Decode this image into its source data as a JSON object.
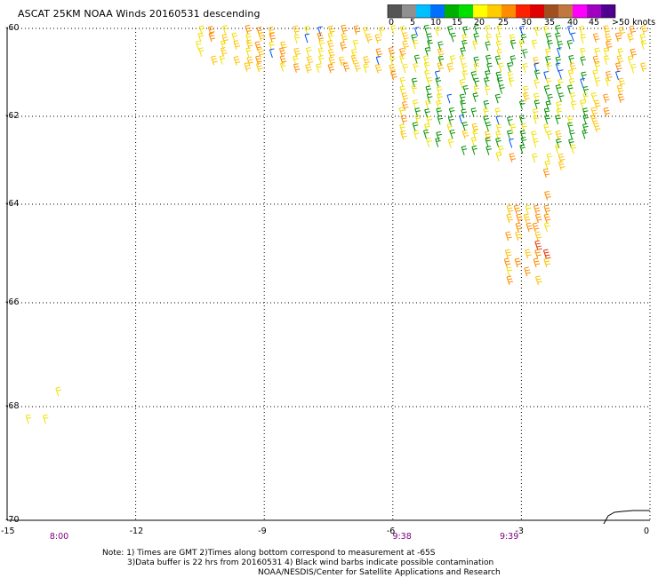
{
  "title": "ASCAT 25KM NOAA Winds 20160531 descending",
  "legend": {
    "ticks": [
      "0",
      "5",
      "10",
      "15",
      "20",
      "25",
      "30",
      "35",
      "40",
      "45",
      ">50 knots"
    ],
    "colors": [
      "#555555",
      "#909090",
      "#00bfff",
      "#0070ff",
      "#00b000",
      "#00e000",
      "#ffff00",
      "#ffcc00",
      "#ff8c00",
      "#ff2000",
      "#e00000",
      "#a05020",
      "#c07840",
      "#ff00ff",
      "#a000c0",
      "#500090"
    ]
  },
  "chart_data": {
    "type": "scatter",
    "title": "ASCAT 25KM NOAA Winds 20160531 descending",
    "xlabel": "",
    "ylabel": "",
    "x_ticks": [
      "-15",
      "-12",
      "-9",
      "-6",
      "-3",
      "0"
    ],
    "y_ticks": [
      "-60",
      "-62",
      "-64",
      "-66",
      "-68",
      "-70"
    ],
    "xlim": [
      -15,
      0
    ],
    "ylim": [
      -70,
      -60
    ],
    "grid": true,
    "time_labels": [
      {
        "x": -13.8,
        "text": "8:00"
      },
      {
        "x": -5.8,
        "text": "9:38"
      },
      {
        "x": -3.3,
        "text": "9:39"
      }
    ],
    "isolated_barbs": [
      {
        "lon": -13.8,
        "lat": -67.8,
        "knots": 20
      },
      {
        "lon": -14.5,
        "lat": -68.3,
        "knots": 20
      },
      {
        "lon": -14.1,
        "lat": -68.3,
        "knots": 20
      }
    ]
  },
  "notes": {
    "line1": "Note: 1) Times are GMT 2)Times along bottom correspond to measurement at -65S",
    "line2": "3)Data buffer is 22 hrs from 20160531 4) Black wind barbs indicate possible contamination",
    "line3": "NOAA/NESDIS/Center for Satellite Applications and Research"
  }
}
